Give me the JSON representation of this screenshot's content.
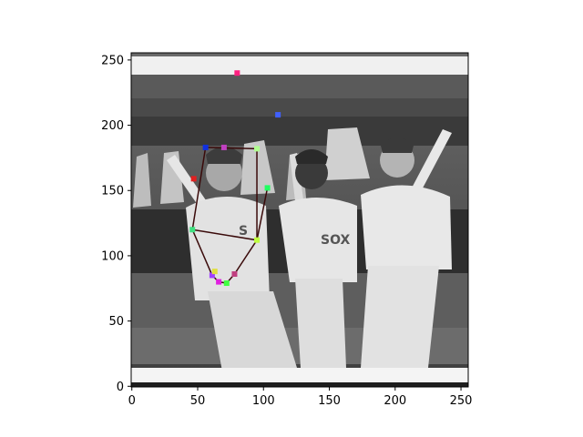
{
  "figure": {
    "background": "#ffffff",
    "image_description_hint": "black-and-white photo of three baseball players holding bats, overlaid with pose keypoints and a skeleton"
  },
  "axes": {
    "x_ticks": [
      {
        "value": 0,
        "label": "0"
      },
      {
        "value": 50,
        "label": "50"
      },
      {
        "value": 100,
        "label": "100"
      },
      {
        "value": 150,
        "label": "150"
      },
      {
        "value": 200,
        "label": "200"
      },
      {
        "value": 250,
        "label": "250"
      }
    ],
    "y_ticks": [
      {
        "value": 0,
        "label": "0"
      },
      {
        "value": 50,
        "label": "50"
      },
      {
        "value": 100,
        "label": "100"
      },
      {
        "value": 150,
        "label": "150"
      },
      {
        "value": 200,
        "label": "200"
      },
      {
        "value": 250,
        "label": "250"
      }
    ],
    "xlim": [
      -0.5,
      255.5
    ],
    "ylim": [
      255.5,
      -0.5
    ]
  },
  "chart_data": {
    "type": "scatter",
    "title": "",
    "xlabel": "",
    "ylabel": "",
    "xlim": [
      -0.5,
      255.5
    ],
    "ylim": [
      255.5,
      -0.5
    ],
    "grid": false,
    "keypoints": [
      {
        "x": 66,
        "y": 80,
        "color": "#e020e0"
      },
      {
        "x": 72,
        "y": 79,
        "color": "#40ff40"
      },
      {
        "x": 61,
        "y": 85,
        "color": "#a040ff"
      },
      {
        "x": 78,
        "y": 86,
        "color": "#c04080"
      },
      {
        "x": 63,
        "y": 88,
        "color": "#e0e040"
      },
      {
        "x": 95,
        "y": 112,
        "color": "#c0ff40"
      },
      {
        "x": 46,
        "y": 120,
        "color": "#40e080"
      },
      {
        "x": 103,
        "y": 152,
        "color": "#20ff60"
      },
      {
        "x": 47,
        "y": 159,
        "color": "#e02020"
      },
      {
        "x": 56,
        "y": 183,
        "color": "#1030e0"
      },
      {
        "x": 70,
        "y": 183,
        "color": "#c040c0"
      },
      {
        "x": 95,
        "y": 182,
        "color": "#b0ff90"
      },
      {
        "x": 111,
        "y": 208,
        "color": "#4060ff"
      },
      {
        "x": 80,
        "y": 240,
        "color": "#ff2080"
      }
    ],
    "skeleton": [
      [
        [
          66,
          80
        ],
        [
          61,
          85
        ]
      ],
      [
        [
          66,
          80
        ],
        [
          72,
          79
        ]
      ],
      [
        [
          72,
          79
        ],
        [
          78,
          86
        ]
      ],
      [
        [
          61,
          85
        ],
        [
          46,
          120
        ]
      ],
      [
        [
          78,
          86
        ],
        [
          95,
          112
        ]
      ],
      [
        [
          46,
          120
        ],
        [
          95,
          112
        ]
      ],
      [
        [
          95,
          112
        ],
        [
          103,
          152
        ]
      ],
      [
        [
          46,
          120
        ],
        [
          56,
          183
        ]
      ],
      [
        [
          95,
          112
        ],
        [
          95,
          182
        ]
      ],
      [
        [
          56,
          183
        ],
        [
          95,
          182
        ]
      ]
    ]
  },
  "colors": {
    "skeleton_line": "#3a0a0a",
    "frame": "#000000"
  }
}
